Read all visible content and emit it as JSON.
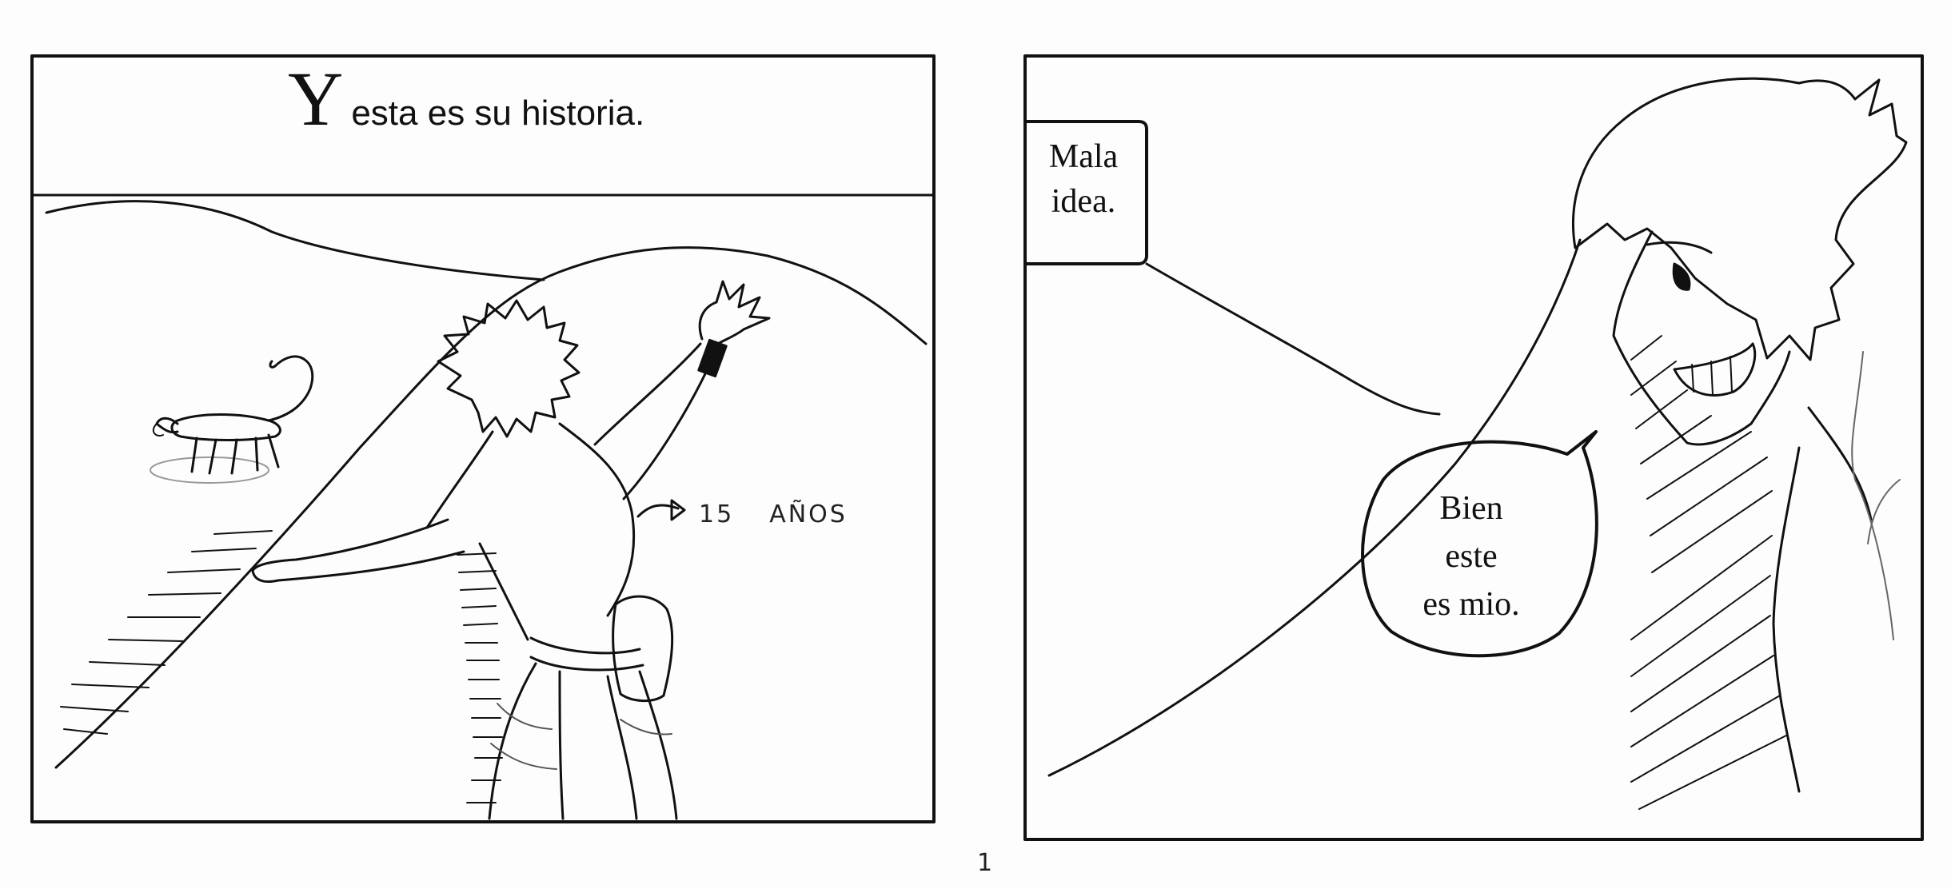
{
  "panel_1": {
    "caption": {
      "drop_cap": "Y",
      "text": "esta es su historia."
    },
    "age_annotation": {
      "number": "15",
      "unit": "AÑOS"
    }
  },
  "panel_2": {
    "caption_box": [
      "Mala",
      "idea."
    ],
    "speech_bubble": [
      "Bien",
      "este",
      "es mio."
    ]
  },
  "page_number": "1"
}
